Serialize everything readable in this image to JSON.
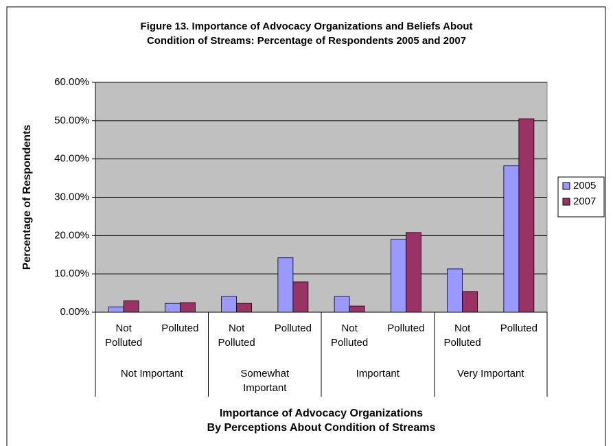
{
  "chart_data": {
    "type": "bar",
    "title": "Figure 13.  Importance of Advocacy Organizations and Beliefs About\nCondition of Streams:  Percentage of Respondents 2005 and 2007",
    "x_label": "Importance of Advocacy Organizations\nBy Perceptions About Condition of Streams",
    "y_label": "Percentage of Respondents",
    "categories": [
      "Not Polluted",
      "Polluted",
      "Not Polluted",
      "Polluted",
      "Not Polluted",
      "Polluted",
      "Not Polluted",
      "Polluted"
    ],
    "groups": [
      "Not Important",
      "Somewhat Important",
      "Important",
      "Very Important"
    ],
    "series": [
      {
        "name": "2005",
        "color": "#9999ff",
        "values": [
          1.4,
          2.3,
          4.1,
          14.2,
          4.1,
          19.0,
          11.3,
          38.2
        ]
      },
      {
        "name": "2007",
        "color": "#993366",
        "values": [
          3.0,
          2.5,
          2.3,
          7.9,
          1.6,
          20.8,
          5.4,
          50.5
        ]
      }
    ],
    "ylim": [
      0,
      60
    ],
    "yticks": [
      {
        "value": 0,
        "label": "0.00%"
      },
      {
        "value": 10,
        "label": "10.00%"
      },
      {
        "value": 20,
        "label": "20.00%"
      },
      {
        "value": 30,
        "label": "30.00%"
      },
      {
        "value": 40,
        "label": "40.00%"
      },
      {
        "value": 50,
        "label": "50.00%"
      },
      {
        "value": 60,
        "label": "60.00%"
      }
    ],
    "grid": true,
    "legend": "right"
  }
}
